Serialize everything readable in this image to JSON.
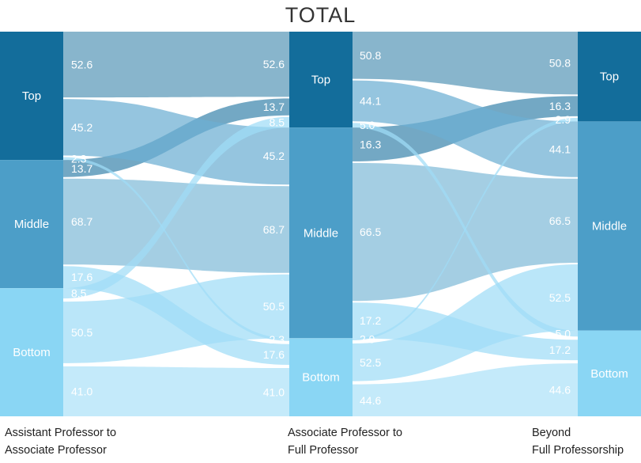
{
  "chart_data": {
    "type": "sankey",
    "title": "TOTAL",
    "stages": [
      {
        "line1": "Assistant Professor to",
        "line2": "Associate Professor"
      },
      {
        "line1": "Associate Professor to",
        "line2": "Full Professor"
      },
      {
        "line1": "Beyond",
        "line2": "Full Professorship"
      }
    ],
    "categories": [
      "Top",
      "Middle",
      "Bottom"
    ],
    "colors": {
      "Top": "#136d9b",
      "Middle": "#4c9ec8",
      "Bottom": "#8ad6f4"
    },
    "flows": [
      {
        "from_stage": 0,
        "to_stage": 1,
        "rows": [
          {
            "from": "Top",
            "to": "Top",
            "value": 52.6,
            "label": "52.6"
          },
          {
            "from": "Top",
            "to": "Middle",
            "value": 45.2,
            "label": "45.2"
          },
          {
            "from": "Top",
            "to": "Bottom",
            "value": 2.3,
            "label": "2.3"
          },
          {
            "from": "Middle",
            "to": "Top",
            "value": 13.7,
            "label": "13.7"
          },
          {
            "from": "Middle",
            "to": "Middle",
            "value": 68.7,
            "label": "68.7"
          },
          {
            "from": "Middle",
            "to": "Bottom",
            "value": 17.6,
            "label": "17.6"
          },
          {
            "from": "Bottom",
            "to": "Top",
            "value": 8.5,
            "label": "8.5"
          },
          {
            "from": "Bottom",
            "to": "Middle",
            "value": 50.5,
            "label": "50.5"
          },
          {
            "from": "Bottom",
            "to": "Bottom",
            "value": 41.0,
            "label": "41.0"
          }
        ]
      },
      {
        "from_stage": 1,
        "to_stage": 2,
        "rows": [
          {
            "from": "Top",
            "to": "Top",
            "value": 50.8,
            "label": "50.8"
          },
          {
            "from": "Top",
            "to": "Middle",
            "value": 44.1,
            "label": "44.1"
          },
          {
            "from": "Top",
            "to": "Bottom",
            "value": 5.0,
            "label": "5.0"
          },
          {
            "from": "Middle",
            "to": "Top",
            "value": 16.3,
            "label": "16.3"
          },
          {
            "from": "Middle",
            "to": "Middle",
            "value": 66.5,
            "label": "66.5"
          },
          {
            "from": "Middle",
            "to": "Bottom",
            "value": 17.2,
            "label": "17.2"
          },
          {
            "from": "Bottom",
            "to": "Top",
            "value": 2.9,
            "label": "2.9"
          },
          {
            "from": "Bottom",
            "to": "Middle",
            "value": 52.5,
            "label": "52.5"
          },
          {
            "from": "Bottom",
            "to": "Bottom",
            "value": 44.6,
            "label": "44.6"
          }
        ]
      }
    ]
  }
}
